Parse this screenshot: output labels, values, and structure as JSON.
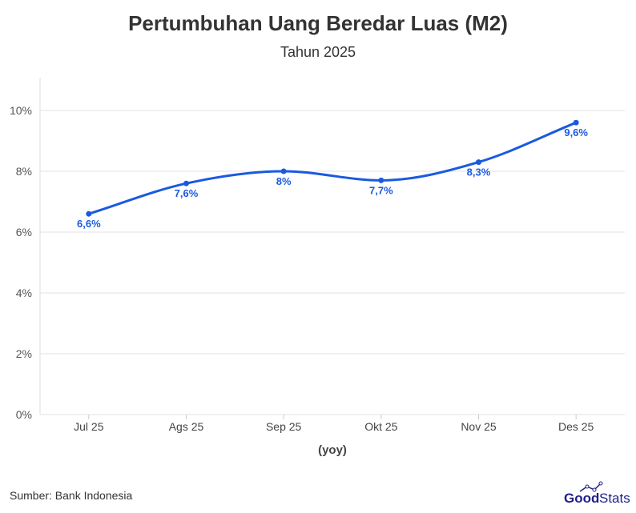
{
  "chart_data": {
    "type": "line",
    "title": "Pertumbuhan Uang Beredar Luas (M2)",
    "subtitle": "Tahun 2025",
    "xlabel": "(yoy)",
    "ylabel": "",
    "categories": [
      "Jul 25",
      "Ags 25",
      "Sep 25",
      "Okt 25",
      "Nov 25",
      "Des 25"
    ],
    "values": [
      6.6,
      7.6,
      8.0,
      7.7,
      8.3,
      9.6
    ],
    "data_labels": [
      "6,6%",
      "7,6%",
      "8%",
      "7,7%",
      "8,3%",
      "9,6%"
    ],
    "yticks": [
      0,
      2,
      4,
      6,
      8,
      10
    ],
    "ytick_labels": [
      "0%",
      "2%",
      "4%",
      "6%",
      "8%",
      "10%"
    ],
    "ylim": [
      0,
      11
    ],
    "grid": true,
    "smooth": true,
    "legend": "none"
  },
  "colors": {
    "line": "#1a5ae0",
    "label": "#1a5ae0",
    "title": "#333333",
    "grid": "#e6e6e6",
    "brand": "#1e1e8c"
  },
  "footer": {
    "source": "Sumber: Bank Indonesia",
    "logo_text": "GoodStats"
  }
}
